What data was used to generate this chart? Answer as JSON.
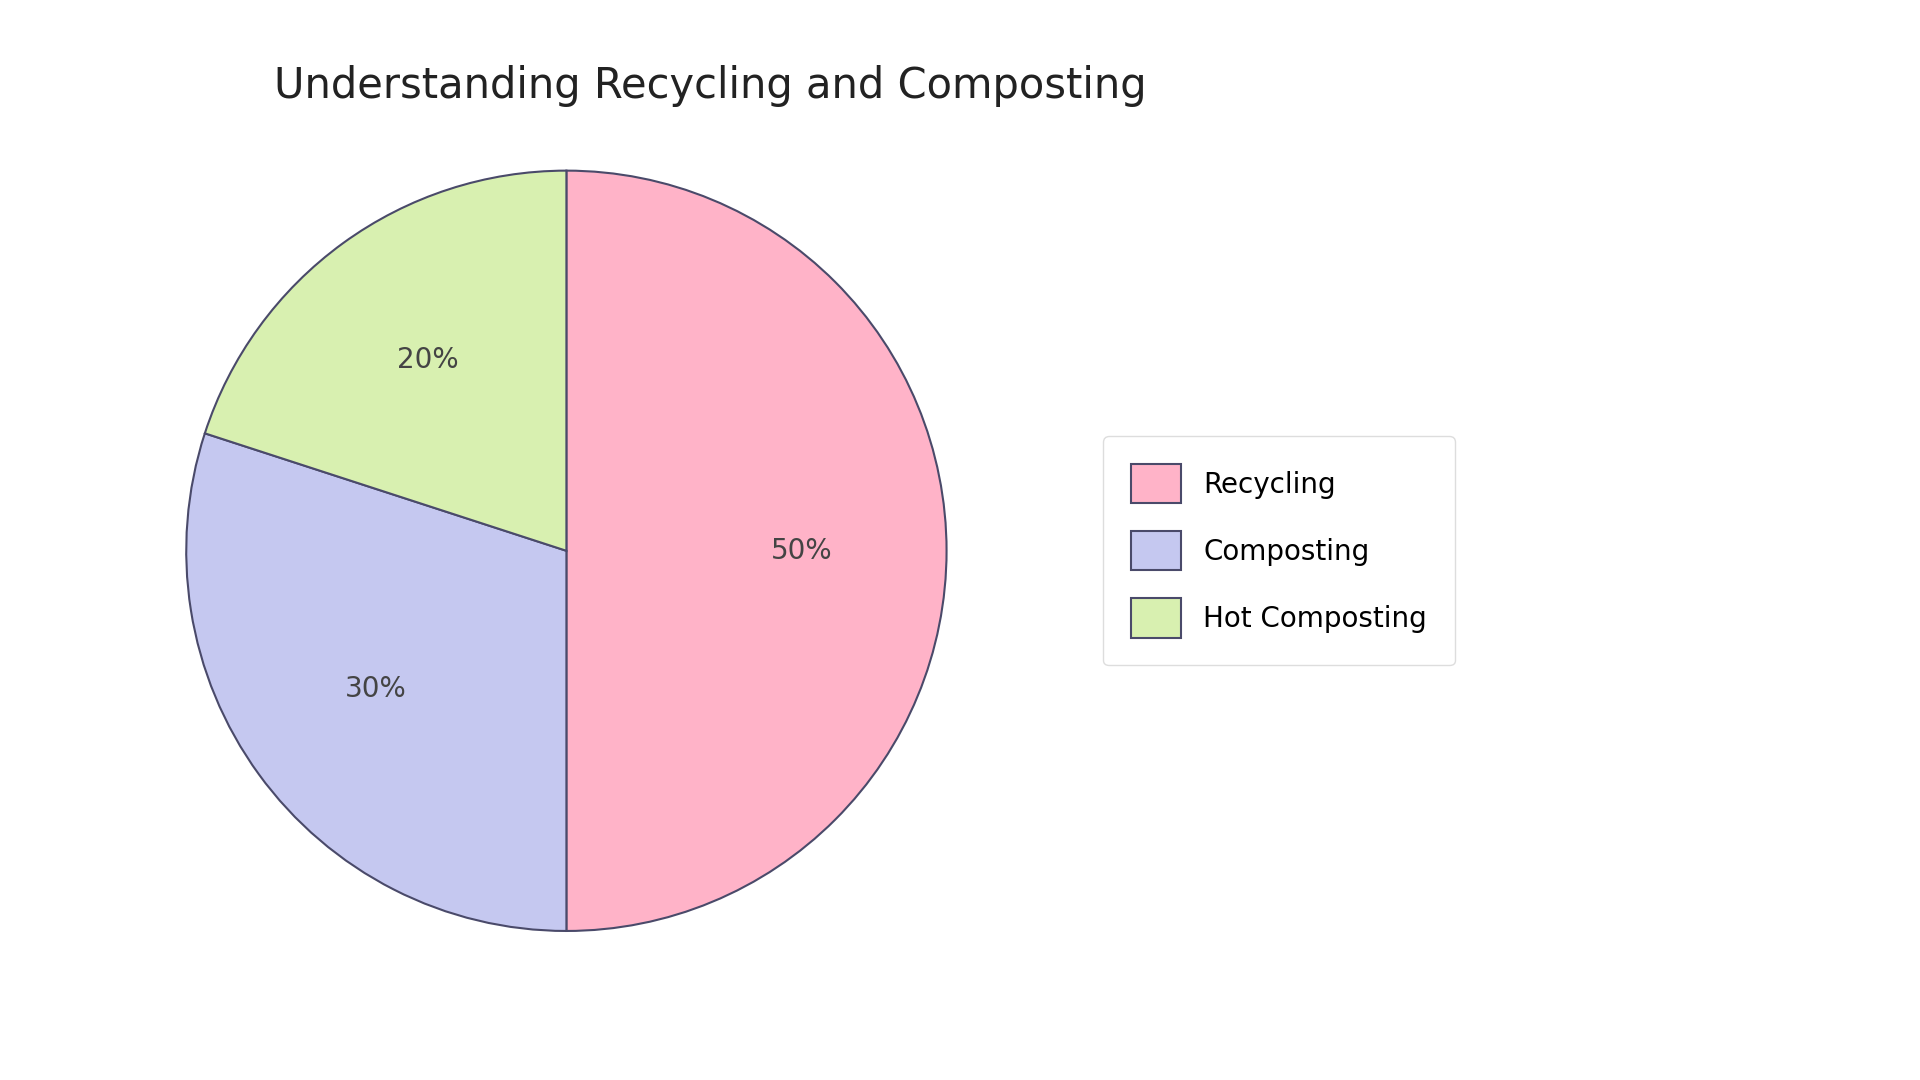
{
  "title": "Understanding Recycling and Composting",
  "labels": [
    "Recycling",
    "Composting",
    "Hot Composting"
  ],
  "values": [
    50,
    30,
    20
  ],
  "colors": [
    "#FFB3C8",
    "#C5C8F0",
    "#D8F0B0"
  ],
  "edge_color": "#4a4a6a",
  "edge_width": 1.5,
  "pct_labels": [
    "50%",
    "30%",
    "20%"
  ],
  "startangle": 90,
  "title_fontsize": 30,
  "pct_fontsize": 20,
  "legend_fontsize": 20,
  "background_color": "#ffffff"
}
